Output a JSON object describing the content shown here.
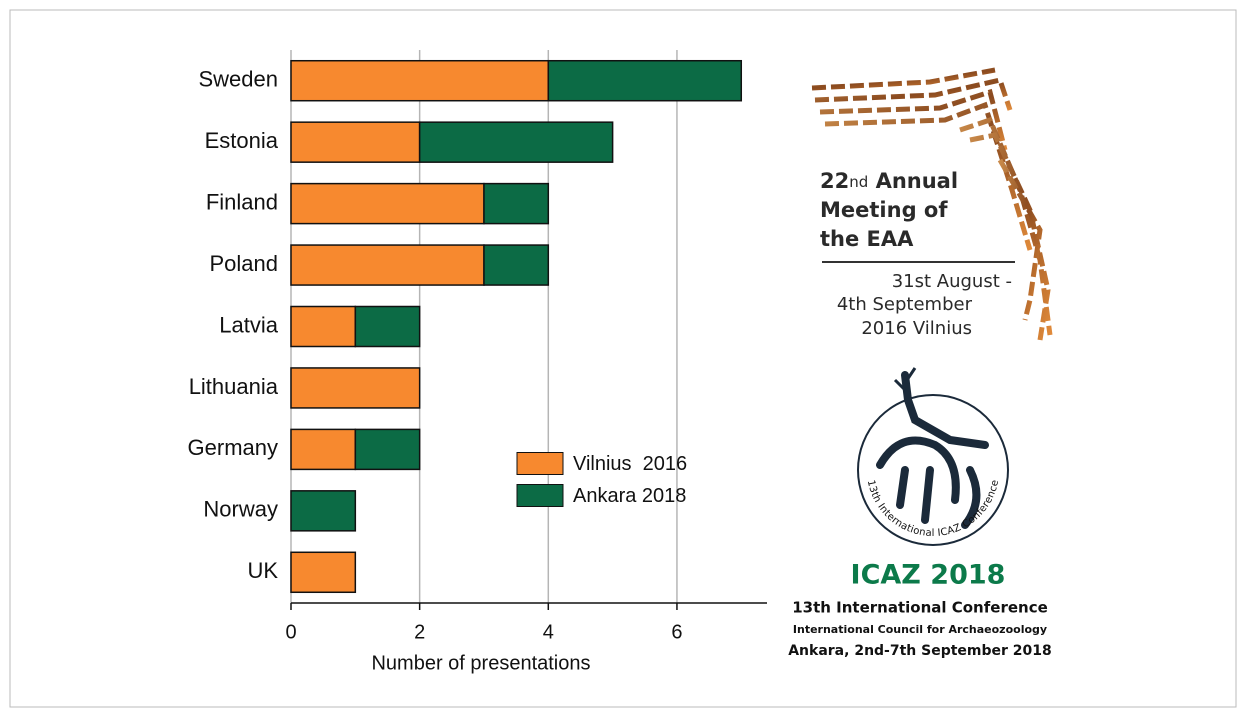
{
  "chart_data": {
    "type": "stacked-barh",
    "categories": [
      "Sweden",
      "Estonia",
      "Finland",
      "Poland",
      "Latvia",
      "Lithuania",
      "Germany",
      "Norway",
      "UK"
    ],
    "series": [
      {
        "name": "Vilnius  2016",
        "color": "#f7892f",
        "values": [
          4,
          2,
          3,
          3,
          1,
          2,
          1,
          0,
          1
        ]
      },
      {
        "name": "Ankara 2018",
        "color": "#0c6b45",
        "values": [
          3,
          3,
          1,
          1,
          1,
          0,
          1,
          1,
          0
        ]
      }
    ],
    "x_label": "Number of presentations",
    "xlim": [
      0,
      7.4
    ],
    "xticks": [
      0,
      2,
      4,
      6
    ],
    "grid": true,
    "legend": "center right"
  },
  "logos": {
    "eaa": {
      "number": "22",
      "suffix": "nd",
      "word": "Annual",
      "line2": "Meeting of",
      "line3": "the EAA",
      "date1": "31st August -",
      "date2": "4th September",
      "date3": "2016 Vilnius"
    },
    "icaz": {
      "ring": "13th International ICAZ Conference",
      "title": "ICAZ 2018",
      "line1": "13th International Conference",
      "line2": "International Council for Archaeozoology",
      "line3": "Ankara, 2nd-7th September 2018"
    }
  }
}
